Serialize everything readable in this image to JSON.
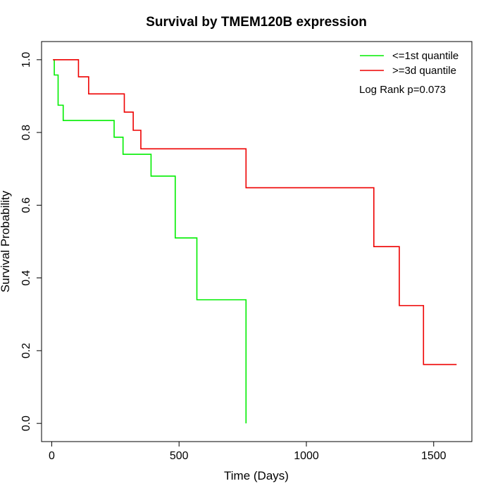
{
  "chart_data": {
    "type": "line",
    "title": "Survival by TMEM120B expression",
    "xlabel": "Time (Days)",
    "ylabel": "Survival Probability",
    "xlim": [
      -40,
      1650
    ],
    "ylim": [
      -0.05,
      1.05
    ],
    "x_ticks": [
      0,
      500,
      1000,
      1500
    ],
    "y_ticks": [
      0.0,
      0.2,
      0.4,
      0.6,
      0.8,
      1.0
    ],
    "x_tick_labels": [
      "0",
      "500",
      "1000",
      "1500"
    ],
    "y_tick_labels": [
      "0.0",
      "0.2",
      "0.4",
      "0.6",
      "0.8",
      "1.0"
    ],
    "grid": false,
    "legend_position": "top-right",
    "annotation": "Log Rank p=0.073",
    "series": [
      {
        "name": "<=1st quantile",
        "color": "#00ee00",
        "step": [
          [
            5,
            1.0
          ],
          [
            10,
            0.958
          ],
          [
            25,
            0.875
          ],
          [
            45,
            0.833
          ],
          [
            245,
            0.787
          ],
          [
            280,
            0.74
          ],
          [
            390,
            0.68
          ],
          [
            485,
            0.51
          ],
          [
            570,
            0.34
          ],
          [
            763,
            0.0
          ]
        ],
        "end_x": 763
      },
      {
        "name": ">=3d quantile",
        "color": "#ee0000",
        "step": [
          [
            5,
            1.0
          ],
          [
            105,
            0.953
          ],
          [
            145,
            0.906
          ],
          [
            285,
            0.856
          ],
          [
            320,
            0.806
          ],
          [
            350,
            0.755
          ],
          [
            763,
            0.648
          ],
          [
            1265,
            0.486
          ],
          [
            1365,
            0.324
          ],
          [
            1460,
            0.162
          ]
        ],
        "end_x": 1590
      }
    ]
  }
}
